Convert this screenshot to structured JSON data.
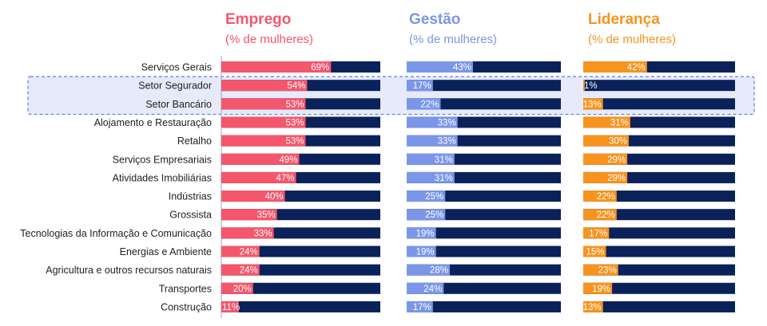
{
  "colors": {
    "emprego": "#f4566b",
    "gestao": "#7b96e8",
    "lideranca": "#f7931e",
    "bar_background": "#0b2159",
    "highlight_fill": "#e6eafa",
    "highlight_border": "#5b7ee0",
    "axis_line": "#9aa8c8"
  },
  "chart_data": {
    "type": "bar",
    "orientation": "horizontal",
    "stacked_to_100": true,
    "categories": [
      "Serviços Gerais",
      "Setor Segurador",
      "Setor Bancário",
      "Alojamento e Restauração",
      "Retalho",
      "Serviços Empresariais",
      "Atividades Imobiliárias",
      "Indústrias",
      "Grossista",
      "Tecnologias da Informação e Comunicação",
      "Energias e Ambiente",
      "Agricultura e outros recursos naturais",
      "Transportes",
      "Construção"
    ],
    "highlighted_categories": [
      "Setor Segurador",
      "Setor Bancário"
    ],
    "xlim": [
      0,
      100
    ],
    "series": [
      {
        "name": "Emprego",
        "subtitle": "(% de mulheres)",
        "color": "#f4566b",
        "values": [
          69,
          54,
          53,
          53,
          53,
          49,
          47,
          40,
          35,
          33,
          24,
          24,
          20,
          11
        ],
        "labels": [
          "69%",
          "54%",
          "53%",
          "53%",
          "53%",
          "49%",
          "47%",
          "40%",
          "35%",
          "33%",
          "24%",
          "24%",
          "20%",
          "11%"
        ]
      },
      {
        "name": "Gestão",
        "subtitle": "(% de mulheres)",
        "color": "#7b96e8",
        "values": [
          43,
          17,
          22,
          33,
          33,
          31,
          31,
          25,
          25,
          19,
          19,
          28,
          24,
          17
        ],
        "labels": [
          "43%",
          "17%",
          "22%",
          "33%",
          "33%",
          "31%",
          "31%",
          "25%",
          "25%",
          "19%",
          "19%",
          "28%",
          "24%",
          "17%"
        ]
      },
      {
        "name": "Liderança",
        "subtitle": "(% de mulheres)",
        "color": "#f7931e",
        "values": [
          42,
          1,
          13,
          31,
          30,
          29,
          29,
          22,
          22,
          17,
          15,
          23,
          19,
          13
        ],
        "labels": [
          "42%",
          "1%",
          "13%",
          "31%",
          "30%",
          "29%",
          "29%",
          "22%",
          "22%",
          "17%",
          "15%",
          "23%",
          "19%",
          "13%"
        ]
      }
    ]
  }
}
